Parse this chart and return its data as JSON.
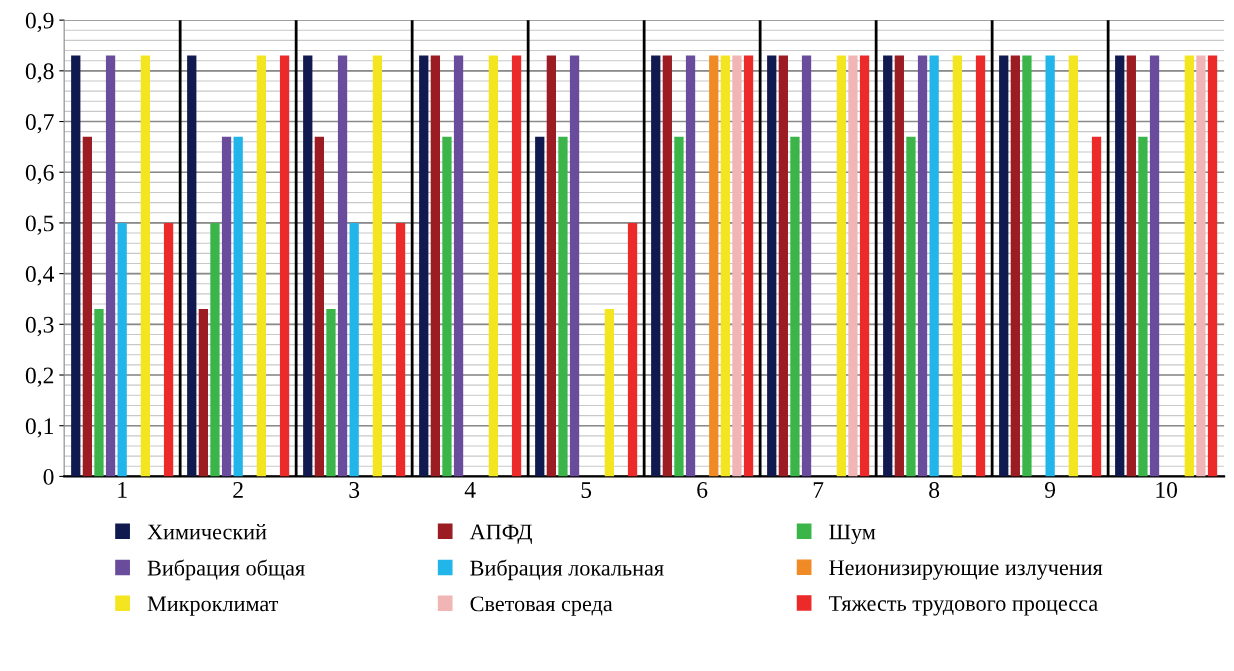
{
  "chart_data": {
    "type": "bar",
    "categories": [
      "1",
      "2",
      "3",
      "4",
      "5",
      "6",
      "7",
      "8",
      "9",
      "10"
    ],
    "series": [
      {
        "name": "Химический",
        "color": "#101a4e",
        "values": [
          0.83,
          0.83,
          0.83,
          0.83,
          0.67,
          0.83,
          0.83,
          0.83,
          0.83,
          0.83
        ]
      },
      {
        "name": "АПФД",
        "color": "#9b1c22",
        "values": [
          0.67,
          0.33,
          0.67,
          0.83,
          0.83,
          0.83,
          0.83,
          0.83,
          0.83,
          0.83
        ]
      },
      {
        "name": "Шум",
        "color": "#3bb44a",
        "values": [
          0.33,
          0.5,
          0.33,
          0.67,
          0.67,
          0.67,
          0.67,
          0.67,
          0.83,
          0.67
        ]
      },
      {
        "name": "Вибрация общая",
        "color": "#6a4c9c",
        "values": [
          0.83,
          0.67,
          0.83,
          0.83,
          0.83,
          0.83,
          0.83,
          0.83,
          null,
          0.83
        ]
      },
      {
        "name": "Вибрация локальная",
        "color": "#22b5ea",
        "values": [
          0.5,
          0.67,
          0.5,
          null,
          null,
          null,
          null,
          0.83,
          0.83,
          null
        ]
      },
      {
        "name": "Неионизирующие излучения",
        "color": "#f08a24",
        "values": [
          null,
          null,
          null,
          null,
          null,
          0.83,
          null,
          null,
          null,
          null
        ]
      },
      {
        "name": "Микроклимат",
        "color": "#f3e620",
        "values": [
          0.83,
          0.83,
          0.83,
          0.83,
          0.33,
          0.83,
          0.83,
          0.83,
          0.83,
          0.83
        ]
      },
      {
        "name": "Световая среда",
        "color": "#f2b5b5",
        "values": [
          null,
          null,
          null,
          null,
          null,
          0.83,
          0.83,
          null,
          null,
          0.83
        ]
      },
      {
        "name": "Тяжесть трудового процесса",
        "color": "#ec2a2a",
        "values": [
          0.5,
          0.83,
          0.5,
          0.83,
          0.5,
          0.83,
          0.83,
          0.83,
          0.67,
          0.83
        ]
      }
    ],
    "ylim": [
      0,
      0.9
    ],
    "yticks": [
      {
        "value": 0,
        "label": "0"
      },
      {
        "value": 0.1,
        "label": "0,1"
      },
      {
        "value": 0.2,
        "label": "0,2"
      },
      {
        "value": 0.3,
        "label": "0,3"
      },
      {
        "value": 0.4,
        "label": "0,4"
      },
      {
        "value": 0.5,
        "label": "0,5"
      },
      {
        "value": 0.6,
        "label": "0,6"
      },
      {
        "value": 0.7,
        "label": "0,7"
      },
      {
        "value": 0.8,
        "label": "0,8"
      },
      {
        "value": 0.9,
        "label": "0,9"
      }
    ],
    "grid": true,
    "legend": "bottom"
  }
}
